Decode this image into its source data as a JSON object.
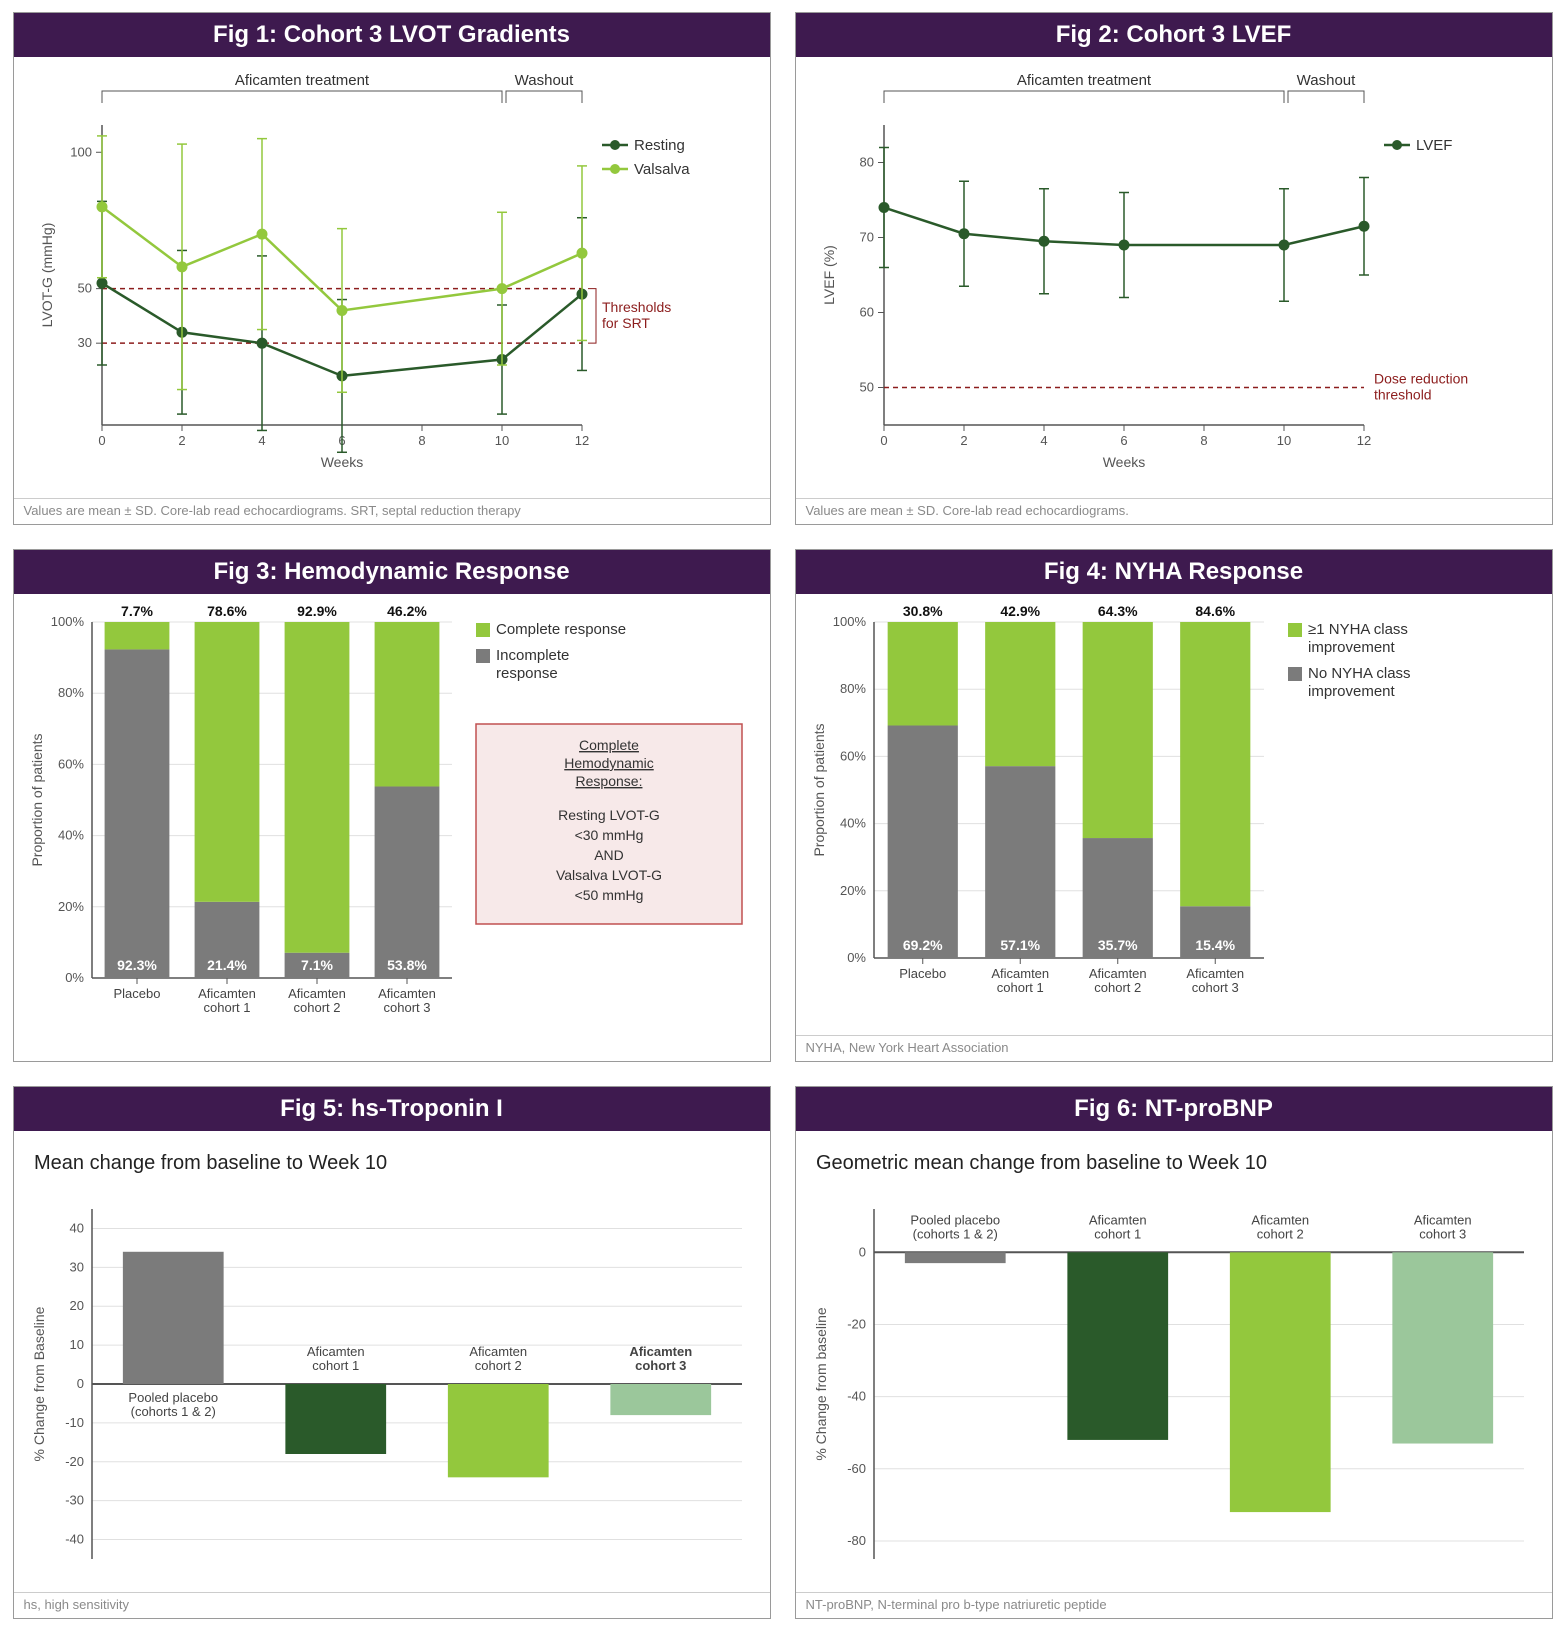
{
  "colors": {
    "header_bg": "#3e1a4f",
    "dark_green": "#2a5a2a",
    "light_green": "#93c83d",
    "mid_green": "#7ab55c",
    "gray": "#7b7b7b",
    "grid": "#e0e0e0",
    "axis": "#555555",
    "threshold_line": "#8c1d1d",
    "info_bg": "#f7e9e9",
    "info_border": "#c05050"
  },
  "fig1": {
    "title": "Fig 1: Cohort 3 LVOT Gradients",
    "type": "line-errorbar",
    "xlabel": "Weeks",
    "ylabel": "LVOT-G (mmHg)",
    "x_ticks": [
      0,
      2,
      4,
      6,
      8,
      10,
      12
    ],
    "y_ticks": [
      30,
      50,
      100
    ],
    "ylim": [
      0,
      110
    ],
    "phase1": "Aficamten treatment",
    "phase2": "Washout",
    "treat_range": [
      0,
      10
    ],
    "wash_range": [
      10,
      12
    ],
    "threshold_label": "Thresholds for SRT",
    "thresholds": [
      30,
      50
    ],
    "series": [
      {
        "name": "Resting",
        "color": "#2a5a2a",
        "x": [
          0,
          2,
          4,
          6,
          10,
          12
        ],
        "y": [
          52,
          34,
          30,
          18,
          24,
          48
        ],
        "err": [
          30,
          30,
          32,
          28,
          20,
          28
        ]
      },
      {
        "name": "Valsalva",
        "color": "#93c83d",
        "x": [
          0,
          2,
          4,
          6,
          10,
          12
        ],
        "y": [
          80,
          58,
          70,
          42,
          50,
          63
        ],
        "err": [
          26,
          45,
          35,
          30,
          28,
          32
        ]
      }
    ],
    "footnote": "Values are mean ± SD. Core-lab read echocardiograms. SRT, septal reduction therapy"
  },
  "fig2": {
    "title": "Fig 2: Cohort 3 LVEF",
    "type": "line-errorbar",
    "xlabel": "Weeks",
    "ylabel": "LVEF (%)",
    "x_ticks": [
      0,
      2,
      4,
      6,
      8,
      10,
      12
    ],
    "y_ticks": [
      50,
      60,
      70,
      80
    ],
    "ylim": [
      45,
      85
    ],
    "phase1": "Aficamten treatment",
    "phase2": "Washout",
    "treat_range": [
      0,
      10
    ],
    "wash_range": [
      10,
      12
    ],
    "threshold_label": "Dose reduction threshold",
    "thresholds": [
      50
    ],
    "series": [
      {
        "name": "LVEF",
        "color": "#2a5a2a",
        "x": [
          0,
          2,
          4,
          6,
          10,
          12
        ],
        "y": [
          74,
          70.5,
          69.5,
          69,
          69,
          71.5
        ],
        "err": [
          8,
          7,
          7,
          7,
          7.5,
          6.5
        ]
      }
    ],
    "footnote": "Values are mean ± SD. Core-lab read echocardiograms."
  },
  "fig3": {
    "title": "Fig 3: Hemodynamic Response",
    "type": "stacked-bar",
    "ylabel": "Proportion of patients",
    "y_ticks": [
      0,
      20,
      40,
      60,
      80,
      100
    ],
    "categories": [
      "Placebo",
      "Aficamten\ncohort 1",
      "Aficamten\ncohort 2",
      "Aficamten\ncohort 3"
    ],
    "segments": [
      {
        "name": "Complete response",
        "color": "#93c83d"
      },
      {
        "name": "Incomplete response",
        "color": "#7b7b7b"
      }
    ],
    "data": [
      {
        "top": 7.7,
        "bottom": 92.3,
        "top_label": "7.7%",
        "bottom_label": "92.3%"
      },
      {
        "top": 78.6,
        "bottom": 21.4,
        "top_label": "78.6%",
        "bottom_label": "21.4%"
      },
      {
        "top": 92.9,
        "bottom": 7.1,
        "top_label": "92.9%",
        "bottom_label": "7.1%"
      },
      {
        "top": 46.2,
        "bottom": 53.8,
        "top_label": "46.2%",
        "bottom_label": "53.8%"
      }
    ],
    "info_title": "Complete Hemodynamic Response:",
    "info_lines": [
      "Resting LVOT-G",
      "<30 mmHg",
      "AND",
      "Valsalva LVOT-G",
      "<50 mmHg"
    ]
  },
  "fig4": {
    "title": "Fig 4: NYHA Response",
    "type": "stacked-bar",
    "ylabel": "Proportion of patients",
    "y_ticks": [
      0,
      20,
      40,
      60,
      80,
      100
    ],
    "categories": [
      "Placebo",
      "Aficamten\ncohort 1",
      "Aficamten\ncohort 2",
      "Aficamten\ncohort 3"
    ],
    "segments": [
      {
        "name": "≥1 NYHA class improvement",
        "color": "#93c83d"
      },
      {
        "name": "No NYHA class improvement",
        "color": "#7b7b7b"
      }
    ],
    "data": [
      {
        "top": 30.8,
        "bottom": 69.2,
        "top_label": "30.8%",
        "bottom_label": "69.2%"
      },
      {
        "top": 42.9,
        "bottom": 57.1,
        "top_label": "42.9%",
        "bottom_label": "57.1%"
      },
      {
        "top": 64.3,
        "bottom": 35.7,
        "top_label": "64.3%",
        "bottom_label": "35.7%"
      },
      {
        "top": 84.6,
        "bottom": 15.4,
        "top_label": "84.6%",
        "bottom_label": "15.4%"
      }
    ],
    "footnote": "NYHA, New York Heart Association"
  },
  "fig5": {
    "title": "Fig 5: hs-Troponin I",
    "subtitle": "Mean change from baseline to Week 10",
    "type": "bar",
    "ylabel": "% Change from Baseline",
    "y_ticks": [
      -40,
      -30,
      -20,
      -10,
      0,
      10,
      20,
      30,
      40
    ],
    "ylim": [
      -45,
      45
    ],
    "categories": [
      "Pooled placebo\n(cohorts 1 & 2)",
      "Aficamten\ncohort 1",
      "Aficamten\ncohort 2",
      "Aficamten\ncohort 3"
    ],
    "bold_cat": 3,
    "values": [
      34,
      -18,
      -24,
      -8
    ],
    "colors": [
      "#7b7b7b",
      "#2a5a2a",
      "#93c83d",
      "#9bc79b"
    ],
    "footnote": "hs, high sensitivity"
  },
  "fig6": {
    "title": "Fig 6: NT-proBNP",
    "subtitle": "Geometric mean change from baseline to Week 10",
    "type": "bar",
    "ylabel": "% Change from baseline",
    "y_ticks": [
      -80,
      -60,
      -40,
      -20,
      0
    ],
    "ylim": [
      -85,
      12
    ],
    "categories": [
      "Pooled placebo\n(cohorts 1 & 2)",
      "Aficamten\ncohort 1",
      "Aficamten\ncohort 2",
      "Aficamten\ncohort 3"
    ],
    "values": [
      -3,
      -52,
      -72,
      -53
    ],
    "colors": [
      "#7b7b7b",
      "#2a5a2a",
      "#93c83d",
      "#9bc79b"
    ],
    "footnote": "NT-proBNP, N-terminal pro b-type natriuretic peptide"
  }
}
